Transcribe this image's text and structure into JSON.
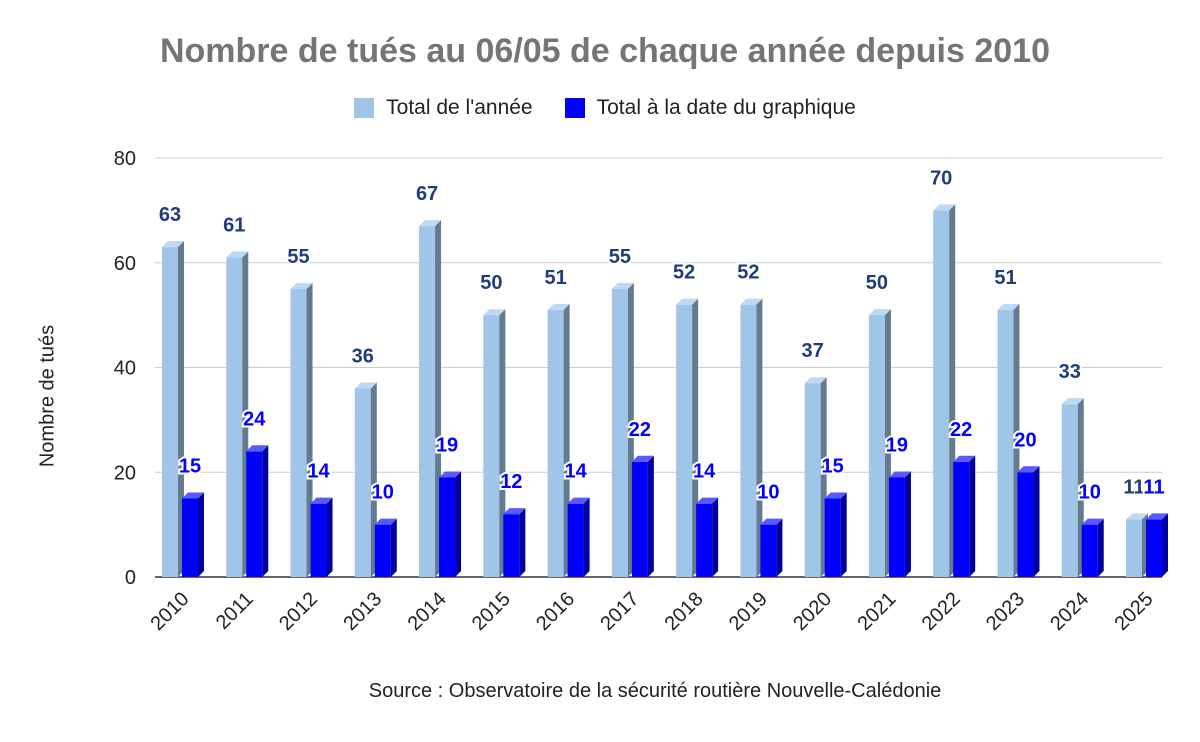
{
  "chart_data": {
    "type": "bar",
    "title": "Nombre de tués au 06/05 de chaque année depuis 2010",
    "ylabel": "Nombre de tués",
    "xlabel": "",
    "source": "Source : Observatoire de la sécurité routière Nouvelle-Calédonie",
    "categories": [
      "2010",
      "2011",
      "2012",
      "2013",
      "2014",
      "2015",
      "2016",
      "2017",
      "2018",
      "2019",
      "2020",
      "2021",
      "2022",
      "2023",
      "2024",
      "2025"
    ],
    "series": [
      {
        "name": "Total de l'année",
        "color": "#9fc5e8",
        "label_color": "#1f3d7a",
        "values": [
          63,
          61,
          55,
          36,
          67,
          50,
          51,
          55,
          52,
          52,
          37,
          50,
          70,
          51,
          33,
          11
        ]
      },
      {
        "name": "Total à la date du graphique",
        "color": "#0000ff",
        "label_color": "#0000ff",
        "values": [
          15,
          24,
          14,
          10,
          19,
          12,
          14,
          22,
          14,
          10,
          15,
          19,
          22,
          20,
          10,
          11
        ]
      }
    ],
    "ylim": [
      0,
      80
    ],
    "yticks": [
      0,
      20,
      40,
      60,
      80
    ],
    "grid": true,
    "legend_position": "top"
  }
}
